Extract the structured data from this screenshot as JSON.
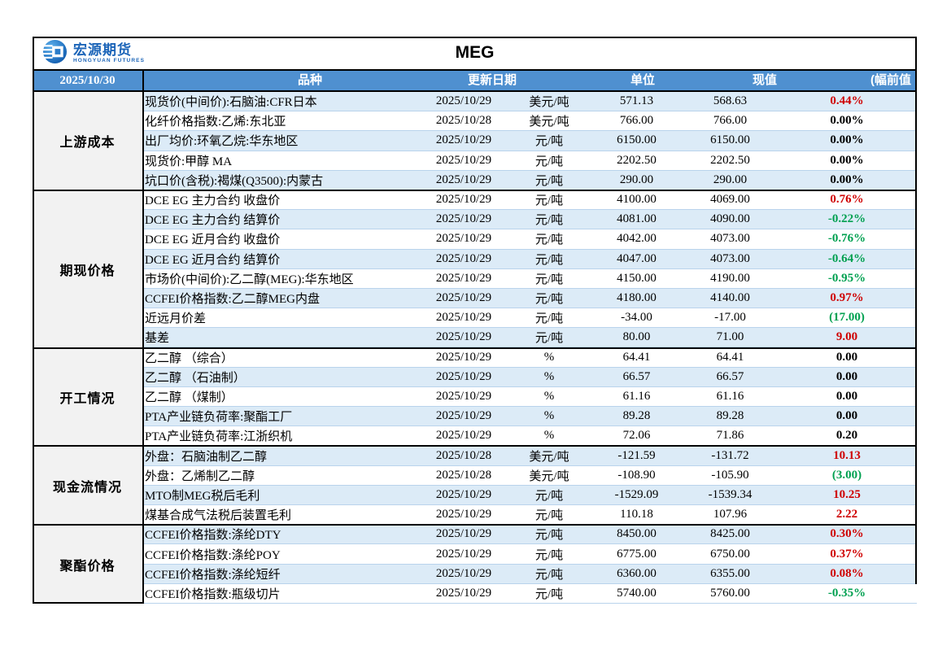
{
  "logo": {
    "name": "宏源期货",
    "subtitle": "HONGYUAN FUTURES"
  },
  "title": "MEG",
  "header": {
    "date_cell": "2025/10/30",
    "columns": [
      "品种",
      "更新日期",
      "单位",
      "现值",
      "(幅前值"
    ]
  },
  "colors": {
    "header_bg": "#4f90d0",
    "stripe_bg": "#dcebf7",
    "section_bg": "#f2f2f2",
    "up_red": "#cf0000",
    "down_green": "#00a050",
    "logo_blue": "#1b64b8"
  },
  "sections": [
    {
      "label": "上游成本",
      "rows": [
        {
          "name": "现货价(中间价):石脑油:CFR日本",
          "date": "2025/10/29",
          "unit": "美元/吨",
          "current": "571.13",
          "previous": "568.63",
          "change": "0.44%",
          "change_color": "red"
        },
        {
          "name": "化纤价格指数:乙烯:东北亚",
          "date": "2025/10/28",
          "unit": "美元/吨",
          "current": "766.00",
          "previous": "766.00",
          "change": "0.00%",
          "change_color": "black"
        },
        {
          "name": "出厂均价:环氧乙烷:华东地区",
          "date": "2025/10/29",
          "unit": "元/吨",
          "current": "6150.00",
          "previous": "6150.00",
          "change": "0.00%",
          "change_color": "black"
        },
        {
          "name": "现货价:甲醇 MA",
          "date": "2025/10/29",
          "unit": "元/吨",
          "current": "2202.50",
          "previous": "2202.50",
          "change": "0.00%",
          "change_color": "black"
        },
        {
          "name": "坑口价(含税):褐煤(Q3500):内蒙古",
          "date": "2025/10/29",
          "unit": "元/吨",
          "current": "290.00",
          "previous": "290.00",
          "change": "0.00%",
          "change_color": "black"
        }
      ]
    },
    {
      "label": "期现价格",
      "rows": [
        {
          "name": "DCE EG 主力合约 收盘价",
          "date": "2025/10/29",
          "unit": "元/吨",
          "current": "4100.00",
          "previous": "4069.00",
          "change": "0.76%",
          "change_color": "red"
        },
        {
          "name": "DCE EG 主力合约 结算价",
          "date": "2025/10/29",
          "unit": "元/吨",
          "current": "4081.00",
          "previous": "4090.00",
          "change": "-0.22%",
          "change_color": "green"
        },
        {
          "name": "DCE EG 近月合约 收盘价",
          "date": "2025/10/29",
          "unit": "元/吨",
          "current": "4042.00",
          "previous": "4073.00",
          "change": "-0.76%",
          "change_color": "green"
        },
        {
          "name": "DCE EG 近月合约 结算价",
          "date": "2025/10/29",
          "unit": "元/吨",
          "current": "4047.00",
          "previous": "4073.00",
          "change": "-0.64%",
          "change_color": "green"
        },
        {
          "name": "市场价(中间价):乙二醇(MEG):华东地区",
          "date": "2025/10/29",
          "unit": "元/吨",
          "current": "4150.00",
          "previous": "4190.00",
          "change": "-0.95%",
          "change_color": "green"
        },
        {
          "name": "CCFEI价格指数:乙二醇MEG内盘",
          "date": "2025/10/29",
          "unit": "元/吨",
          "current": "4180.00",
          "previous": "4140.00",
          "change": "0.97%",
          "change_color": "red"
        },
        {
          "name": "近远月价差",
          "date": "2025/10/29",
          "unit": "元/吨",
          "current": "-34.00",
          "previous": "-17.00",
          "change": "(17.00)",
          "change_color": "green"
        },
        {
          "name": "基差",
          "date": "2025/10/29",
          "unit": "元/吨",
          "current": "80.00",
          "previous": "71.00",
          "change": "9.00",
          "change_color": "red"
        }
      ]
    },
    {
      "label": "开工情况",
      "rows": [
        {
          "name": "乙二醇 （综合）",
          "date": "2025/10/29",
          "unit": "%",
          "current": "64.41",
          "previous": "64.41",
          "change": "0.00",
          "change_color": "black"
        },
        {
          "name": "乙二醇 （石油制）",
          "date": "2025/10/29",
          "unit": "%",
          "current": "66.57",
          "previous": "66.57",
          "change": "0.00",
          "change_color": "black"
        },
        {
          "name": "乙二醇 （煤制）",
          "date": "2025/10/29",
          "unit": "%",
          "current": "61.16",
          "previous": "61.16",
          "change": "0.00",
          "change_color": "black"
        },
        {
          "name": "PTA产业链负荷率:聚酯工厂",
          "date": "2025/10/29",
          "unit": "%",
          "current": "89.28",
          "previous": "89.28",
          "change": "0.00",
          "change_color": "black"
        },
        {
          "name": "PTA产业链负荷率:江浙织机",
          "date": "2025/10/29",
          "unit": "%",
          "current": "72.06",
          "previous": "71.86",
          "change": "0.20",
          "change_color": "black"
        }
      ]
    },
    {
      "label": "现金流情况",
      "rows": [
        {
          "name": "外盘：石脑油制乙二醇",
          "date": "2025/10/28",
          "unit": "美元/吨",
          "current": "-121.59",
          "previous": "-131.72",
          "change": "10.13",
          "change_color": "red"
        },
        {
          "name": "外盘：乙烯制乙二醇",
          "date": "2025/10/28",
          "unit": "美元/吨",
          "current": "-108.90",
          "previous": "-105.90",
          "change": "(3.00)",
          "change_color": "green"
        },
        {
          "name": "MTO制MEG税后毛利",
          "date": "2025/10/29",
          "unit": "元/吨",
          "current": "-1529.09",
          "previous": "-1539.34",
          "change": "10.25",
          "change_color": "red"
        },
        {
          "name": "煤基合成气法税后装置毛利",
          "date": "2025/10/29",
          "unit": "元/吨",
          "current": "110.18",
          "previous": "107.96",
          "change": "2.22",
          "change_color": "red"
        }
      ]
    },
    {
      "label": "聚酯价格",
      "rows": [
        {
          "name": "CCFEI价格指数:涤纶DTY",
          "date": "2025/10/29",
          "unit": "元/吨",
          "current": "8450.00",
          "previous": "8425.00",
          "change": "0.30%",
          "change_color": "red"
        },
        {
          "name": "CCFEI价格指数:涤纶POY",
          "date": "2025/10/29",
          "unit": "元/吨",
          "current": "6775.00",
          "previous": "6750.00",
          "change": "0.37%",
          "change_color": "red"
        },
        {
          "name": "CCFEI价格指数:涤纶短纤",
          "date": "2025/10/29",
          "unit": "元/吨",
          "current": "6360.00",
          "previous": "6355.00",
          "change": "0.08%",
          "change_color": "red"
        },
        {
          "name": "CCFEI价格指数:瓶级切片",
          "date": "2025/10/29",
          "unit": "元/吨",
          "current": "5740.00",
          "previous": "5760.00",
          "change": "-0.35%",
          "change_color": "green"
        }
      ]
    }
  ]
}
